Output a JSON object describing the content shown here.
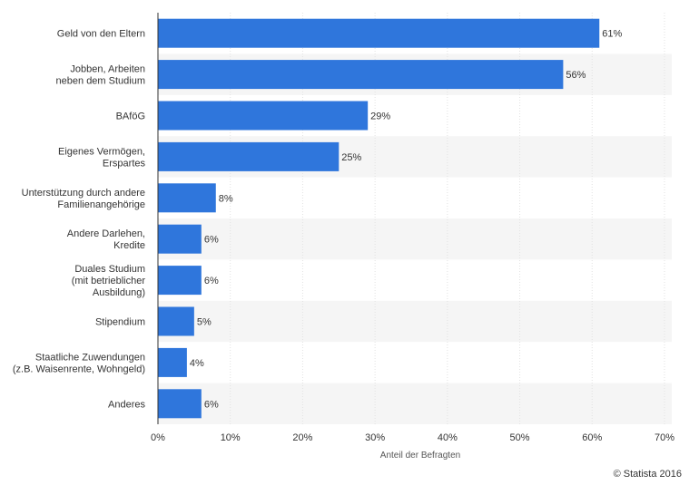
{
  "colors": {
    "bar": "#2f76dc",
    "band": "#f5f5f5",
    "grid": "#e2e2e2",
    "axis": "#333333"
  },
  "credit": "© Statista 2016",
  "chart_data": {
    "type": "bar",
    "orientation": "horizontal",
    "categories": [
      [
        "Geld von den Eltern"
      ],
      [
        "Jobben, Arbeiten",
        "neben dem Studium"
      ],
      [
        "BAföG"
      ],
      [
        "Eigenes Vermögen,",
        "Erspartes"
      ],
      [
        "Unterstützung durch andere",
        "Familienangehörige"
      ],
      [
        "Andere Darlehen,",
        "Kredite"
      ],
      [
        "Duales Studium",
        "(mit betrieblicher",
        "Ausbildung)"
      ],
      [
        "Stipendium"
      ],
      [
        "Staatliche Zuwendungen",
        "(z.B. Waisenrente, Wohngeld)"
      ],
      [
        "Anderes"
      ]
    ],
    "values": [
      61,
      56,
      29,
      25,
      8,
      6,
      6,
      5,
      4,
      6
    ],
    "data_labels": [
      "61%",
      "56%",
      "29%",
      "25%",
      "8%",
      "6%",
      "6%",
      "5%",
      "4%",
      "6%"
    ],
    "xlabel": "Anteil der Befragten",
    "xlim": [
      0,
      70
    ],
    "xticks": [
      0,
      10,
      20,
      30,
      40,
      50,
      60,
      70
    ],
    "xtick_labels": [
      "0%",
      "10%",
      "20%",
      "30%",
      "40%",
      "50%",
      "60%",
      "70%"
    ],
    "grid": true,
    "legend": "none"
  }
}
